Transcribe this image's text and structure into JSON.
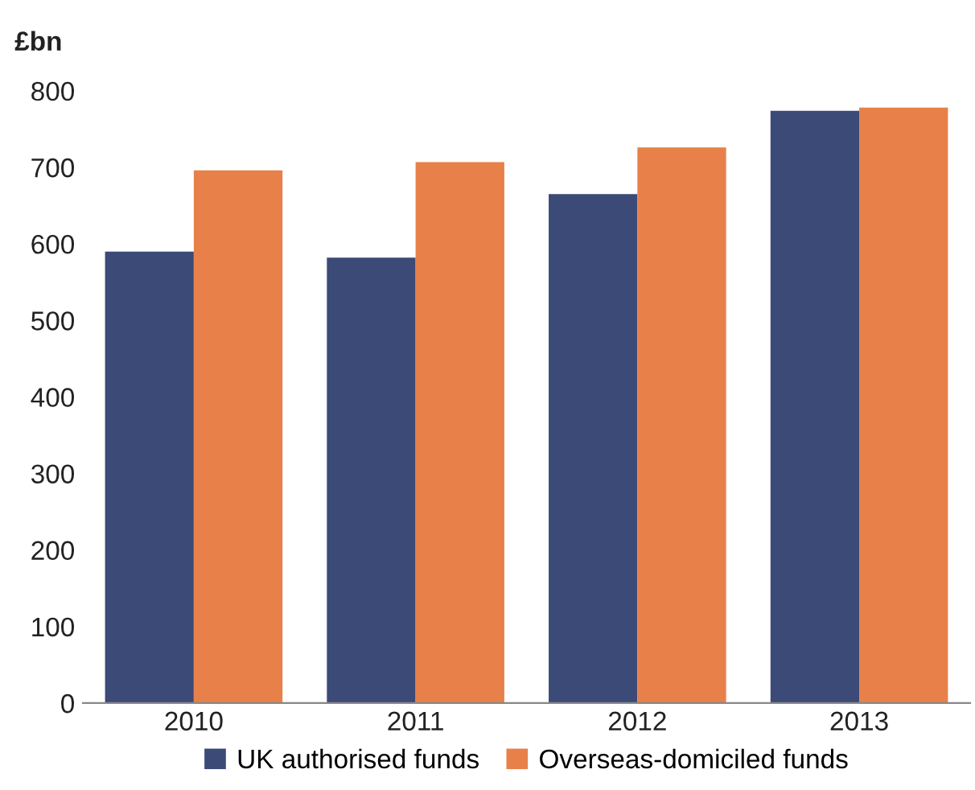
{
  "chart_data": {
    "type": "bar",
    "ylabel": "£bn",
    "categories": [
      "2010",
      "2011",
      "2012",
      "2013"
    ],
    "series": [
      {
        "name": "UK authorised funds",
        "color": "#3b4a76",
        "values": [
          590,
          582,
          665,
          774
        ]
      },
      {
        "name": "Overseas-domiciled funds",
        "color": "#e8804a",
        "values": [
          696,
          707,
          726,
          778
        ]
      }
    ],
    "ylim": [
      0,
      800
    ],
    "yticks": [
      0,
      100,
      200,
      300,
      400,
      500,
      600,
      700,
      800
    ],
    "grid": false,
    "legend": "bottom"
  }
}
